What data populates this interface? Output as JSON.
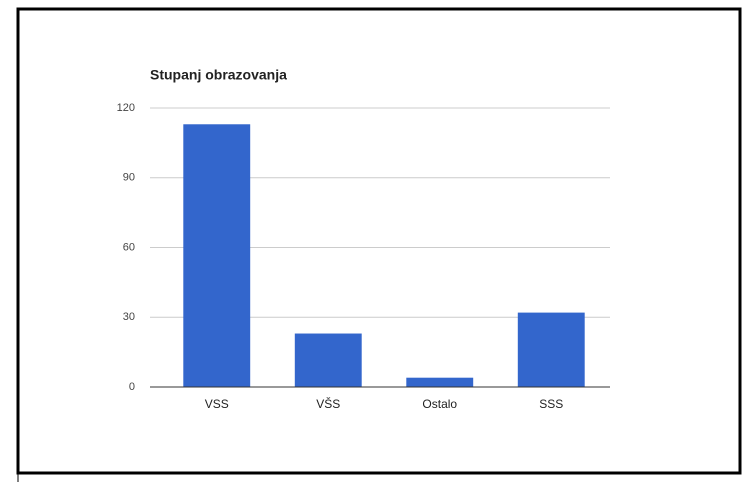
{
  "chart_data": {
    "type": "bar",
    "title": "Stupanj obrazovanja",
    "categories": [
      "VSS",
      "VŠS",
      "Ostalo",
      "SSS"
    ],
    "values": [
      113,
      23,
      4,
      32
    ],
    "color": "#3366cc",
    "ylim": [
      0,
      120
    ],
    "yticks": [
      0,
      30,
      60,
      90,
      120
    ],
    "grid": true
  }
}
